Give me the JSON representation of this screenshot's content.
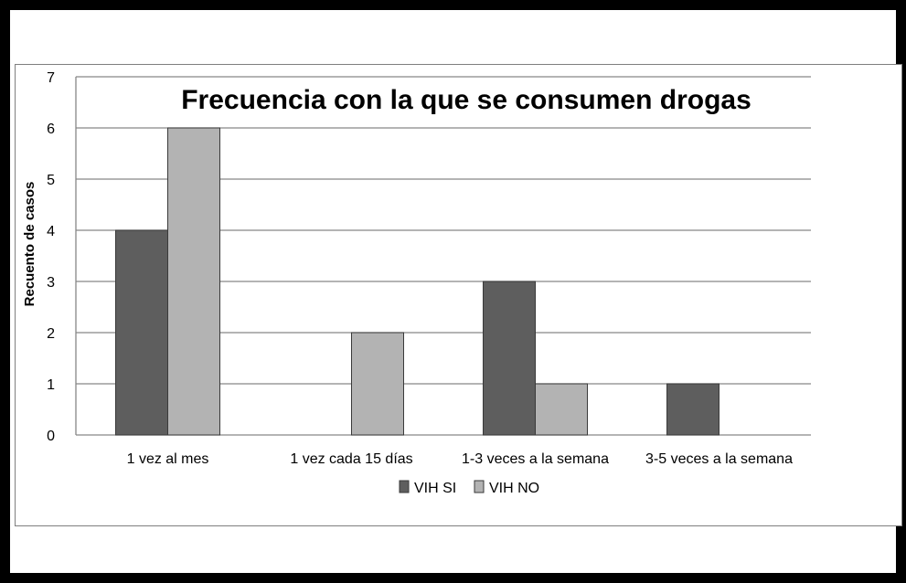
{
  "chart_data": {
    "type": "bar",
    "title": "Frecuencia con la que se consumen drogas",
    "xlabel": "",
    "ylabel": "Recuento de casos",
    "categories": [
      "1 vez al mes",
      "1 vez cada 15 días",
      "1-3 veces a la semana",
      "3-5 veces a la semana"
    ],
    "series": [
      {
        "name": "VIH SI",
        "values": [
          4,
          0,
          3,
          1
        ],
        "color": "#5e5e5e"
      },
      {
        "name": "VIH NO",
        "values": [
          6,
          2,
          1,
          0
        ],
        "color": "#b3b3b3"
      }
    ],
    "ylim": [
      0,
      7
    ],
    "yticks": [
      0,
      1,
      2,
      3,
      4,
      5,
      6,
      7
    ],
    "grid": true,
    "legend": "bottom"
  }
}
